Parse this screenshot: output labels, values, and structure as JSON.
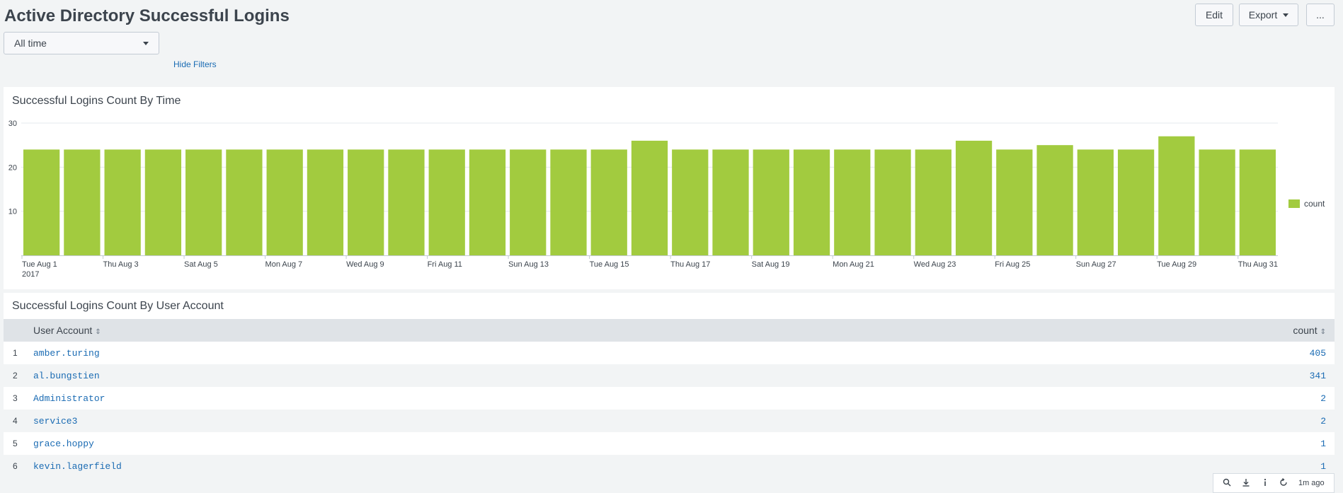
{
  "dashboard": {
    "title": "Active Directory Successful Logins",
    "edit_label": "Edit",
    "export_label": "Export",
    "more_label": "...",
    "time_picker": "All time",
    "hide_filters": "Hide Filters"
  },
  "panel_chart": {
    "title": "Successful Logins Count By Time"
  },
  "chart_data": {
    "type": "bar",
    "title": "Successful Logins Count By Time",
    "xlabel": "",
    "ylabel": "",
    "ylim": [
      0,
      30
    ],
    "y_ticks": [
      "30",
      "20",
      "10"
    ],
    "x_tick_labels": [
      {
        "day": 1,
        "label": "Tue Aug 1",
        "sublabel": "2017"
      },
      {
        "day": 3,
        "label": "Thu Aug 3"
      },
      {
        "day": 5,
        "label": "Sat Aug 5"
      },
      {
        "day": 7,
        "label": "Mon Aug 7"
      },
      {
        "day": 9,
        "label": "Wed Aug 9"
      },
      {
        "day": 11,
        "label": "Fri Aug 11"
      },
      {
        "day": 13,
        "label": "Sun Aug 13"
      },
      {
        "day": 15,
        "label": "Tue Aug 15"
      },
      {
        "day": 17,
        "label": "Thu Aug 17"
      },
      {
        "day": 19,
        "label": "Sat Aug 19"
      },
      {
        "day": 21,
        "label": "Mon Aug 21"
      },
      {
        "day": 23,
        "label": "Wed Aug 23"
      },
      {
        "day": 25,
        "label": "Fri Aug 25"
      },
      {
        "day": 27,
        "label": "Sun Aug 27"
      },
      {
        "day": 29,
        "label": "Tue Aug 29"
      },
      {
        "day": 31,
        "label": "Thu Aug 31"
      }
    ],
    "categories": [
      "2017-08-01",
      "2017-08-02",
      "2017-08-03",
      "2017-08-04",
      "2017-08-05",
      "2017-08-06",
      "2017-08-07",
      "2017-08-08",
      "2017-08-09",
      "2017-08-10",
      "2017-08-11",
      "2017-08-12",
      "2017-08-13",
      "2017-08-14",
      "2017-08-15",
      "2017-08-16",
      "2017-08-17",
      "2017-08-18",
      "2017-08-19",
      "2017-08-20",
      "2017-08-21",
      "2017-08-22",
      "2017-08-23",
      "2017-08-24",
      "2017-08-25",
      "2017-08-26",
      "2017-08-27",
      "2017-08-28",
      "2017-08-29",
      "2017-08-30",
      "2017-08-31"
    ],
    "series": [
      {
        "name": "count",
        "color": "#a2cb3f",
        "values": [
          24,
          24,
          24,
          24,
          24,
          24,
          24,
          24,
          24,
          24,
          24,
          24,
          24,
          24,
          24,
          26,
          24,
          24,
          24,
          24,
          24,
          24,
          24,
          26,
          24,
          25,
          24,
          24,
          27,
          24,
          24
        ]
      }
    ],
    "grid": true,
    "legend": "right"
  },
  "panel_table": {
    "title": "Successful Logins Count By User Account",
    "columns": {
      "account": "User Account",
      "count": "count"
    },
    "rows": [
      {
        "idx": "1",
        "account": "amber.turing",
        "count": "405"
      },
      {
        "idx": "2",
        "account": "al.bungstien",
        "count": "341"
      },
      {
        "idx": "3",
        "account": "Administrator",
        "count": "2"
      },
      {
        "idx": "4",
        "account": "service3",
        "count": "2"
      },
      {
        "idx": "5",
        "account": "grace.hoppy",
        "count": "1"
      },
      {
        "idx": "6",
        "account": "kevin.lagerfield",
        "count": "1"
      }
    ]
  },
  "footer": {
    "updated": "1m ago",
    "icons": [
      "search-icon",
      "download-icon",
      "info-icon",
      "refresh-icon"
    ]
  }
}
